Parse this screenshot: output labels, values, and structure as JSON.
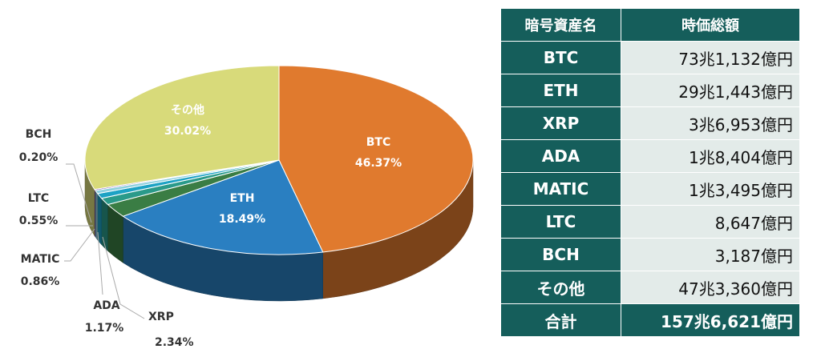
{
  "chart_data": {
    "type": "pie",
    "categories": [
      "BTC",
      "ETH",
      "XRP",
      "ADA",
      "MATIC",
      "LTC",
      "BCH",
      "その他"
    ],
    "values": [
      46.37,
      18.49,
      2.34,
      1.17,
      0.86,
      0.55,
      0.2,
      30.02
    ],
    "labels": [
      "46.37%",
      "18.49%",
      "2.34%",
      "1.17%",
      "0.86%",
      "0.55%",
      "0.20%",
      "30.02%"
    ],
    "colors": [
      "#e07a2e",
      "#2a7fc1",
      "#3a7d44",
      "#2a9a8a",
      "#1da2c4",
      "#8fd0df",
      "#6a3fb0",
      "#d8da7a"
    ],
    "style": "3d-pie",
    "legend": "none"
  },
  "table": {
    "headers": [
      "暗号資産名",
      "時価総額"
    ],
    "rows": [
      {
        "name": "BTC",
        "value": "73兆1,132億円"
      },
      {
        "name": "ETH",
        "value": "29兆1,443億円"
      },
      {
        "name": "XRP",
        "value": "3兆6,953億円"
      },
      {
        "name": "ADA",
        "value": "1兆8,404億円"
      },
      {
        "name": "MATIC",
        "value": "1兆3,495億円"
      },
      {
        "name": "LTC",
        "value": "8,647億円"
      },
      {
        "name": "BCH",
        "value": "3,187億円"
      },
      {
        "name": "その他",
        "value": "47兆3,360億円"
      }
    ],
    "total": {
      "name": "合計",
      "value": "157兆6,621億円"
    }
  }
}
